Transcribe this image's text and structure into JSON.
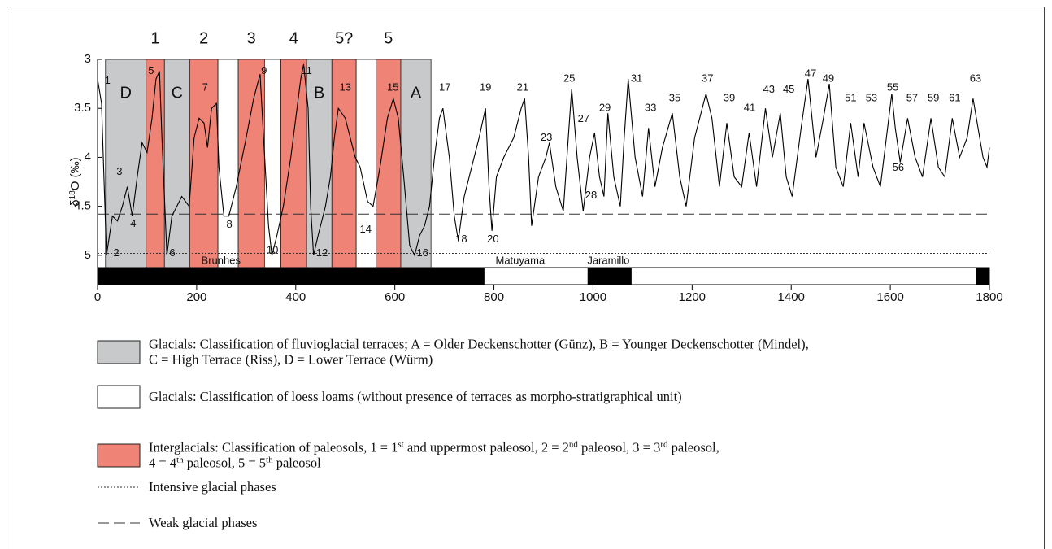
{
  "chart_data": {
    "type": "line",
    "y_label": [
      "δ",
      "18",
      "O (‰)"
    ],
    "xlim": [
      0,
      1800
    ],
    "xticks": [
      0,
      200,
      400,
      600,
      800,
      1000,
      1200,
      1400,
      1600,
      1800
    ],
    "ylim": [
      3,
      5.3
    ],
    "yticks": [
      3,
      3.5,
      4,
      4.5,
      5
    ],
    "color": "#000000",
    "x": [
      0,
      8,
      18,
      30,
      40,
      50,
      60,
      70,
      80,
      90,
      100,
      110,
      118,
      125,
      130,
      140,
      150,
      160,
      170,
      185,
      195,
      205,
      215,
      222,
      230,
      240,
      245,
      255,
      265,
      280,
      300,
      315,
      328,
      335,
      345,
      352,
      362,
      375,
      390,
      400,
      410,
      416,
      425,
      430,
      436,
      445,
      460,
      470,
      478,
      486,
      500,
      510,
      520,
      530,
      545,
      556,
      570,
      585,
      597,
      607,
      618,
      630,
      640,
      650,
      660,
      670,
      680,
      690,
      697,
      710,
      720,
      728,
      740,
      750,
      770,
      783,
      790,
      796,
      805,
      820,
      840,
      855,
      862,
      870,
      876,
      890,
      905,
      912,
      925,
      940,
      950,
      957,
      968,
      980,
      993,
      1003,
      1013,
      1022,
      1030,
      1042,
      1055,
      1063,
      1071,
      1085,
      1100,
      1112,
      1125,
      1140,
      1160,
      1175,
      1188,
      1205,
      1228,
      1240,
      1255,
      1270,
      1285,
      1300,
      1315,
      1330,
      1348,
      1362,
      1378,
      1390,
      1402,
      1420,
      1434,
      1450,
      1465,
      1477,
      1490,
      1505,
      1520,
      1535,
      1547,
      1565,
      1580,
      1603,
      1610,
      1620,
      1635,
      1650,
      1665,
      1682,
      1697,
      1710,
      1725,
      1740,
      1755,
      1767,
      1777,
      1787,
      1795,
      1800
    ],
    "values": [
      3.2,
      3.45,
      5.0,
      4.6,
      4.65,
      4.5,
      4.3,
      4.6,
      4.2,
      3.85,
      3.95,
      3.6,
      3.2,
      3.12,
      3.8,
      5.0,
      4.6,
      4.5,
      4.4,
      4.5,
      3.8,
      3.6,
      3.65,
      3.9,
      3.5,
      3.45,
      4.1,
      4.6,
      4.6,
      4.3,
      3.8,
      3.4,
      3.15,
      3.8,
      4.7,
      5.0,
      4.8,
      4.5,
      4.0,
      3.6,
      3.2,
      3.05,
      3.5,
      4.5,
      5.0,
      4.8,
      4.5,
      4.2,
      3.8,
      3.5,
      3.6,
      3.8,
      4.0,
      4.1,
      4.45,
      4.5,
      4.1,
      3.6,
      3.4,
      3.6,
      4.2,
      4.9,
      5.0,
      4.8,
      4.7,
      4.5,
      4.0,
      3.6,
      3.5,
      4.0,
      4.6,
      4.85,
      4.4,
      4.2,
      3.8,
      3.5,
      4.3,
      4.75,
      4.2,
      4.0,
      3.8,
      3.5,
      3.4,
      4.0,
      4.7,
      4.2,
      4.0,
      3.85,
      4.3,
      4.55,
      3.8,
      3.3,
      4.0,
      4.55,
      4.0,
      3.75,
      4.2,
      4.4,
      3.55,
      4.2,
      4.5,
      3.8,
      3.2,
      4.0,
      4.4,
      3.7,
      4.3,
      3.9,
      3.55,
      4.2,
      4.5,
      3.8,
      3.35,
      3.6,
      4.3,
      3.65,
      4.2,
      4.3,
      3.75,
      4.3,
      3.5,
      4.0,
      3.55,
      4.2,
      4.4,
      3.7,
      3.2,
      4.0,
      3.6,
      3.25,
      4.1,
      4.3,
      3.65,
      4.2,
      3.65,
      4.1,
      4.3,
      3.35,
      3.7,
      4.05,
      3.6,
      4.0,
      4.2,
      3.6,
      4.1,
      4.2,
      3.6,
      4.0,
      3.8,
      3.4,
      3.7,
      4.0,
      4.1,
      3.9
    ],
    "band_colors": {
      "terrace": "#c8c9cb",
      "loess": "#ffffff",
      "paleosol": "#ef8375"
    },
    "bands": [
      {
        "start": 16,
        "end": 98,
        "kind": "terrace",
        "label": "D"
      },
      {
        "start": 98,
        "end": 135,
        "kind": "paleosol",
        "top": "1"
      },
      {
        "start": 135,
        "end": 186,
        "kind": "terrace",
        "label": "C"
      },
      {
        "start": 186,
        "end": 243,
        "kind": "paleosol",
        "top": "2"
      },
      {
        "start": 243,
        "end": 284,
        "kind": "loess"
      },
      {
        "start": 284,
        "end": 337,
        "kind": "paleosol",
        "top": "3"
      },
      {
        "start": 337,
        "end": 370,
        "kind": "loess"
      },
      {
        "start": 370,
        "end": 422,
        "kind": "paleosol",
        "top": "4"
      },
      {
        "start": 422,
        "end": 473,
        "kind": "terrace",
        "label": "B"
      },
      {
        "start": 473,
        "end": 522,
        "kind": "paleosol",
        "top": "5?"
      },
      {
        "start": 522,
        "end": 562,
        "kind": "loess"
      },
      {
        "start": 562,
        "end": 612,
        "kind": "paleosol",
        "top": "5"
      },
      {
        "start": 612,
        "end": 673,
        "kind": "terrace",
        "label": "A"
      }
    ],
    "band_label_y": 3.35,
    "weak_glacial": 4.58,
    "intensive_glacial": 4.98,
    "polarity": [
      {
        "start": 0,
        "end": 780,
        "color": "#000000",
        "label": "Brunhes",
        "label_at": 249
      },
      {
        "start": 780,
        "end": 990,
        "color": "#ffffff",
        "label": "Matuyama",
        "label_at": 853
      },
      {
        "start": 990,
        "end": 1077,
        "color": "#000000",
        "label": "Jaramillo",
        "label_at": 1031
      },
      {
        "start": 1077,
        "end": 1773,
        "color": "#ffffff"
      },
      {
        "start": 1773,
        "end": 1800,
        "color": "#000000"
      }
    ],
    "stage_labels": [
      {
        "text": "1",
        "x": 20,
        "y": 3.22
      },
      {
        "text": "2",
        "x": 38,
        "y": 4.98
      },
      {
        "text": "3",
        "x": 44,
        "y": 4.15
      },
      {
        "text": "4",
        "x": 72,
        "y": 4.68
      },
      {
        "text": "5",
        "x": 108,
        "y": 3.12
      },
      {
        "text": "6",
        "x": 151,
        "y": 4.98
      },
      {
        "text": "7",
        "x": 217,
        "y": 3.29
      },
      {
        "text": "8",
        "x": 266,
        "y": 4.69
      },
      {
        "text": "9",
        "x": 336,
        "y": 3.12
      },
      {
        "text": "10",
        "x": 353,
        "y": 4.95
      },
      {
        "text": "11",
        "x": 422,
        "y": 3.12
      },
      {
        "text": "12",
        "x": 453,
        "y": 4.98
      },
      {
        "text": "13",
        "x": 500,
        "y": 3.29
      },
      {
        "text": "14",
        "x": 541,
        "y": 4.74
      },
      {
        "text": "15",
        "x": 596,
        "y": 3.29
      },
      {
        "text": "16",
        "x": 656,
        "y": 4.98
      },
      {
        "text": "17",
        "x": 701,
        "y": 3.29
      },
      {
        "text": "18",
        "x": 734,
        "y": 4.84
      },
      {
        "text": "19",
        "x": 783,
        "y": 3.29
      },
      {
        "text": "20",
        "x": 798,
        "y": 4.84
      },
      {
        "text": "21",
        "x": 858,
        "y": 3.29
      },
      {
        "text": "23",
        "x": 906,
        "y": 3.8
      },
      {
        "text": "25",
        "x": 952,
        "y": 3.2
      },
      {
        "text": "27",
        "x": 981,
        "y": 3.61
      },
      {
        "text": "28",
        "x": 996,
        "y": 4.39
      },
      {
        "text": "29",
        "x": 1024,
        "y": 3.5
      },
      {
        "text": "31",
        "x": 1088,
        "y": 3.2
      },
      {
        "text": "33",
        "x": 1116,
        "y": 3.5
      },
      {
        "text": "35",
        "x": 1165,
        "y": 3.4
      },
      {
        "text": "37",
        "x": 1231,
        "y": 3.2
      },
      {
        "text": "39",
        "x": 1275,
        "y": 3.4
      },
      {
        "text": "41",
        "x": 1316,
        "y": 3.5
      },
      {
        "text": "43",
        "x": 1355,
        "y": 3.31
      },
      {
        "text": "45",
        "x": 1395,
        "y": 3.31
      },
      {
        "text": "47",
        "x": 1439,
        "y": 3.15
      },
      {
        "text": "49",
        "x": 1475,
        "y": 3.2
      },
      {
        "text": "51",
        "x": 1520,
        "y": 3.4
      },
      {
        "text": "53",
        "x": 1562,
        "y": 3.4
      },
      {
        "text": "55",
        "x": 1605,
        "y": 3.29
      },
      {
        "text": "56",
        "x": 1616,
        "y": 4.11
      },
      {
        "text": "57",
        "x": 1644,
        "y": 3.4
      },
      {
        "text": "59",
        "x": 1687,
        "y": 3.4
      },
      {
        "text": "61",
        "x": 1730,
        "y": 3.4
      },
      {
        "text": "63",
        "x": 1772,
        "y": 3.2
      }
    ],
    "legend": [
      {
        "swatch": "terrace",
        "lines": [
          [
            "Glacials: Classification of fluvioglacial terraces; A = Older Deckenschotter (Günz), B = Younger Deckenschotter (Mindel),"
          ],
          [
            "C = High Terrace (Riss), D = Lower Terrace (Würm)"
          ]
        ]
      },
      {
        "swatch": "loess",
        "lines": [
          [
            "Glacials: Classification of loess loams (without presence of terraces as morpho-stratigraphical unit)"
          ]
        ]
      },
      {
        "swatch": "paleosol",
        "lines": [
          [
            "Interglacials: Classification of paleosols, 1 = 1",
            {
              "sup": "st"
            },
            " and uppermost paleosol, 2 = 2",
            {
              "sup": "nd"
            },
            " paleosol, 3 = 3",
            {
              "sup": "rd"
            },
            " paleosol,"
          ],
          [
            "4 = 4",
            {
              "sup": "th"
            },
            " paleosol, 5 = 5",
            {
              "sup": "th"
            },
            " paleosol"
          ]
        ]
      },
      {
        "swatch": "dotted",
        "lines": [
          [
            "Intensive glacial phases"
          ]
        ]
      },
      {
        "swatch": "dashed",
        "lines": [
          [
            "Weak glacial phases"
          ]
        ]
      }
    ]
  }
}
